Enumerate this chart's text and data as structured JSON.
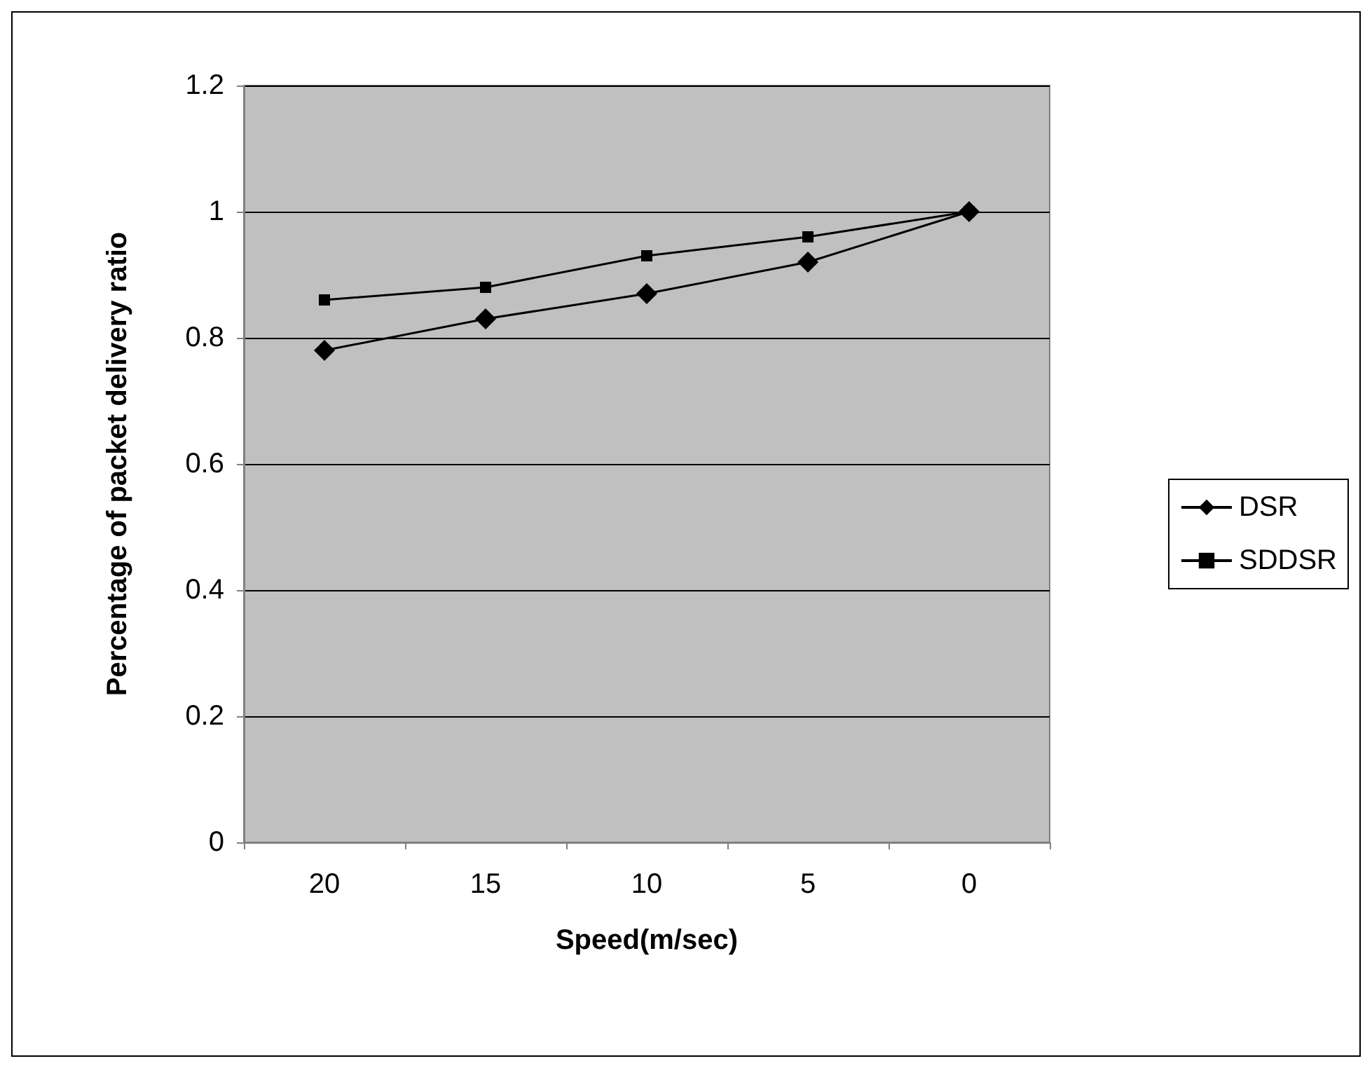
{
  "chart_data": {
    "type": "line",
    "xlabel": "Speed(m/sec)",
    "ylabel": "Percentage of packet delivery ratio",
    "categories": [
      "20",
      "15",
      "10",
      "5",
      "0"
    ],
    "series": [
      {
        "name": "DSR",
        "color": "#000000",
        "marker": "diamond",
        "values": [
          0.78,
          0.83,
          0.87,
          0.92,
          1.0
        ]
      },
      {
        "name": "SDDSR",
        "color": "#000000",
        "marker": "square",
        "values": [
          0.86,
          0.88,
          0.93,
          0.96,
          1.0
        ]
      }
    ],
    "ylim": [
      0,
      1.2
    ],
    "yticks": [
      0,
      0.2,
      0.4,
      0.6,
      0.8,
      1,
      1.2
    ],
    "grid": "y",
    "legend": "right",
    "line_style": "solid"
  }
}
